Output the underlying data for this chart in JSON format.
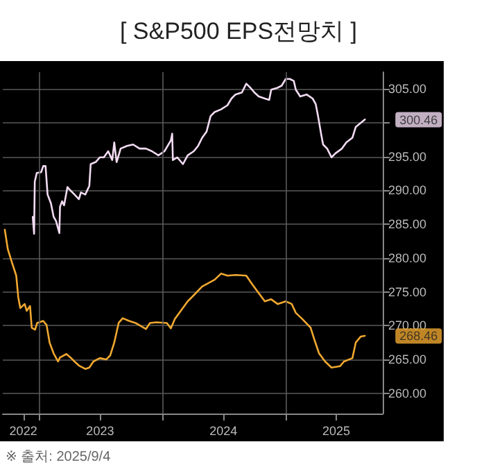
{
  "chart_data": {
    "type": "line",
    "title": "[ S&P500 EPS전망치 ]",
    "series": [
      {
        "color": "#f2dcf2",
        "x": [
          "2022-12-13",
          "2022-12-17",
          "2022-12-19",
          "2022-12-25",
          "2023-01-07",
          "2023-01-13",
          "2023-01-20",
          "2023-01-26",
          "2023-02-05",
          "2023-02-13",
          "2023-02-20",
          "2023-03-02",
          "2023-03-04",
          "2023-03-10",
          "2023-03-16",
          "2023-03-26",
          "2023-04-04",
          "2023-04-16",
          "2023-04-29",
          "2023-05-05",
          "2023-05-18",
          "2023-05-30",
          "2023-06-03",
          "2023-06-18",
          "2023-06-30",
          "2023-07-12",
          "2023-07-25",
          "2023-08-06",
          "2023-08-12",
          "2023-08-19",
          "2023-08-31",
          "2023-09-19",
          "2023-10-07",
          "2023-10-26",
          "2023-11-14",
          "2023-12-02",
          "2023-12-21",
          "2024-01-08",
          "2024-01-27",
          "2024-01-31",
          "2024-02-02",
          "2024-02-15",
          "2024-03-03",
          "2024-03-17",
          "2024-04-04",
          "2024-04-17",
          "2024-04-29",
          "2024-05-12",
          "2024-05-24",
          "2024-06-05",
          "2024-06-24",
          "2024-07-13",
          "2024-07-25",
          "2024-08-06",
          "2024-08-25",
          "2024-09-07",
          "2024-09-19",
          "2024-10-01",
          "2024-10-14",
          "2024-11-01",
          "2024-11-14",
          "2024-11-20",
          "2024-12-09",
          "2024-12-21",
          "2025-01-02",
          "2025-01-14",
          "2025-01-26",
          "2025-02-01",
          "2025-02-14",
          "2025-03-05",
          "2025-03-23",
          "2025-04-01",
          "2025-04-08",
          "2025-04-17",
          "2025-04-23",
          "2025-05-05",
          "2025-05-18",
          "2025-05-30",
          "2025-06-18",
          "2025-07-01",
          "2025-07-19",
          "2025-07-29",
          "2025-08-13",
          "2025-08-25"
        ],
        "values": [
          286.1,
          283.6,
          291.3,
          292.6,
          292.7,
          293.6,
          293.6,
          289.4,
          288.1,
          286.1,
          285.5,
          283.7,
          287.6,
          288.4,
          287.8,
          290.5,
          290.0,
          289.4,
          288.7,
          289.7,
          289.4,
          290.7,
          293.9,
          294.2,
          294.9,
          294.9,
          295.8,
          294.5,
          297.1,
          294.2,
          296.2,
          296.6,
          296.8,
          296.2,
          296.2,
          295.8,
          295.2,
          295.8,
          297.4,
          298.4,
          294.5,
          294.9,
          293.9,
          295.2,
          295.8,
          296.6,
          297.8,
          298.7,
          301.0,
          301.6,
          302.0,
          302.6,
          303.6,
          304.2,
          304.5,
          305.8,
          305.2,
          304.5,
          303.9,
          303.6,
          303.4,
          304.9,
          305.2,
          305.5,
          306.5,
          306.5,
          306.2,
          304.9,
          303.9,
          304.2,
          303.6,
          302.8,
          301.0,
          298.4,
          296.8,
          296.2,
          294.9,
          295.5,
          296.2,
          297.1,
          297.8,
          299.4,
          300.0,
          300.5
        ]
      },
      {
        "color": "#f0a830",
        "x": [
          "2022-09-21",
          "2022-09-30",
          "2022-10-12",
          "2022-10-25",
          "2022-10-31",
          "2022-11-06",
          "2022-11-19",
          "2022-11-25",
          "2022-12-05",
          "2022-12-10",
          "2022-12-20",
          "2022-12-26",
          "2023-01-13",
          "2023-01-23",
          "2023-02-01",
          "2023-02-13",
          "2023-02-26",
          "2023-03-04",
          "2023-03-23",
          "2023-04-04",
          "2023-04-16",
          "2023-04-29",
          "2023-05-18",
          "2023-05-30",
          "2023-06-11",
          "2023-06-30",
          "2023-07-19",
          "2023-07-31",
          "2023-08-12",
          "2023-08-25",
          "2023-09-06",
          "2023-09-25",
          "2023-10-14",
          "2023-11-14",
          "2023-11-26",
          "2023-12-15",
          "2024-01-15",
          "2024-01-27",
          "2024-02-08",
          "2024-02-27",
          "2024-03-17",
          "2024-04-04",
          "2024-04-29",
          "2024-05-18",
          "2024-06-05",
          "2024-06-24",
          "2024-07-13",
          "2024-08-06",
          "2024-09-07",
          "2024-09-25",
          "2024-10-14",
          "2024-11-01",
          "2024-11-20",
          "2024-12-09",
          "2025-01-02",
          "2025-01-20",
          "2025-02-01",
          "2025-02-20",
          "2025-03-17",
          "2025-03-29",
          "2025-04-11",
          "2025-04-29",
          "2025-05-18",
          "2025-06-12",
          "2025-06-24",
          "2025-07-19",
          "2025-07-29",
          "2025-08-13",
          "2025-08-25"
        ],
        "values": [
          284.2,
          281.3,
          279.4,
          277.4,
          274.2,
          272.6,
          273.2,
          272.2,
          272.9,
          269.7,
          269.4,
          270.4,
          270.7,
          270.1,
          267.5,
          265.9,
          264.7,
          265.3,
          265.8,
          265.3,
          264.7,
          264.1,
          263.6,
          263.8,
          264.7,
          265.2,
          265.0,
          265.6,
          267.5,
          270.4,
          271.1,
          270.7,
          270.4,
          269.5,
          270.4,
          270.5,
          270.4,
          269.6,
          271.0,
          272.3,
          273.6,
          274.5,
          275.8,
          276.3,
          276.8,
          277.7,
          277.4,
          277.5,
          277.4,
          276.1,
          274.8,
          273.6,
          273.9,
          273.2,
          273.6,
          273.2,
          271.9,
          271.0,
          269.7,
          267.8,
          265.9,
          264.7,
          263.8,
          264.0,
          264.7,
          265.2,
          267.5,
          268.4,
          268.5
        ]
      }
    ],
    "xlim": [
      "2022-09-15",
      "2025-10-17"
    ],
    "xticks": [
      {
        "value": "2022-11-15",
        "label": "2022"
      },
      {
        "value": "2023-01-01",
        "label": null
      },
      {
        "value": "2023-07-01",
        "label": "2023"
      },
      {
        "value": "2024-01-01",
        "label": null
      },
      {
        "value": "2024-07-01",
        "label": "2024"
      },
      {
        "value": "2025-01-01",
        "label": null
      },
      {
        "value": "2025-06-01",
        "label": "2025"
      }
    ],
    "ylim": [
      257,
      307.5
    ],
    "yticks": [
      {
        "value": 260,
        "label": "260.00"
      },
      {
        "value": 265,
        "label": "265.00"
      },
      {
        "value": 270,
        "label": "270.00"
      },
      {
        "value": 275,
        "label": "275.00"
      },
      {
        "value": 280,
        "label": "280.00"
      },
      {
        "value": 285,
        "label": "285.00"
      },
      {
        "value": 290,
        "label": "290.00"
      },
      {
        "value": 295,
        "label": "295.00"
      },
      {
        "value": 300,
        "label": null
      },
      {
        "value": 305,
        "label": "305.00"
      }
    ],
    "grid": true,
    "marker": "none",
    "line_style": "solid",
    "annotations": [
      {
        "text": "300.46",
        "x": "2025-08-25",
        "y": 300.46
      },
      {
        "text": "268.46",
        "x": "2025-08-25",
        "y": 268.46
      },
      "※ 출처: 2025/9/4"
    ]
  }
}
